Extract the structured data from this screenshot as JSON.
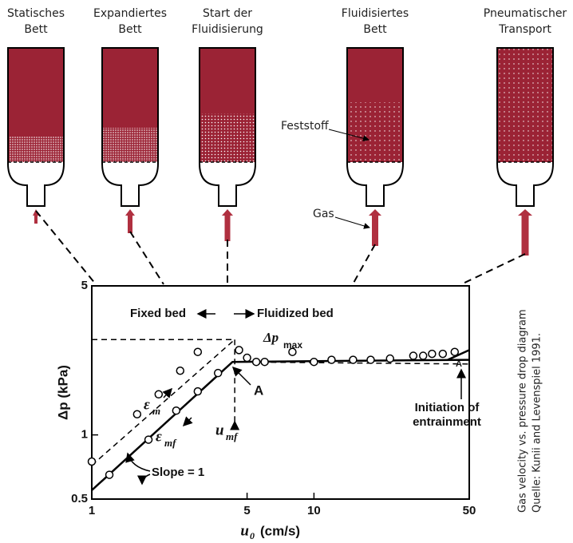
{
  "vessels": [
    {
      "label": [
        "Statisches",
        "Bett"
      ]
    },
    {
      "label": [
        "Expandiertes",
        "Bett"
      ]
    },
    {
      "label": [
        "Start der",
        "Fluidisierung"
      ]
    },
    {
      "label": [
        "Fluidisiertes",
        "Bett"
      ]
    },
    {
      "label": [
        "Pneumatischer",
        "Transport"
      ]
    }
  ],
  "callouts": {
    "solid": "Feststoff",
    "gas": "Gas"
  },
  "side_note": [
    "Gas velocity vs. pressure drop diagram",
    "Quelle: Kunii and Levenspiel 1991."
  ],
  "chart_data": {
    "type": "scatter",
    "x_label": {
      "main": "u",
      "sub": "0",
      "unit": "(cm/s)"
    },
    "y_label": "Δp (kPa)",
    "log_x": true,
    "log_y": true,
    "xlim": [
      1,
      50
    ],
    "ylim": [
      0.5,
      5
    ],
    "xticks": [
      1,
      5,
      10,
      50
    ],
    "yticks": [
      0.5,
      1,
      5
    ],
    "series": [
      {
        "color": "#000",
        "x": [
          1.0,
          1.6,
          2.0,
          2.5,
          3.0
        ],
        "values": [
          0.75,
          1.25,
          1.55,
          2.0,
          2.45
        ]
      },
      {
        "color": "#000",
        "x": [
          1.2,
          1.8,
          2.4,
          3.0,
          3.7
        ],
        "values": [
          0.65,
          0.95,
          1.3,
          1.6,
          1.95
        ]
      },
      {
        "color": "#000",
        "x": [
          4.6,
          5.0,
          5.5,
          6.0,
          8.0,
          10,
          12,
          15,
          18,
          22,
          28,
          31,
          34,
          38,
          43
        ],
        "values": [
          2.5,
          2.3,
          2.2,
          2.2,
          2.45,
          2.2,
          2.25,
          2.25,
          2.25,
          2.28,
          2.35,
          2.35,
          2.4,
          2.4,
          2.45
        ]
      }
    ],
    "guide_lines": [
      {
        "dash": true,
        "x": [
          1,
          4.4
        ],
        "y": [
          0.72,
          2.8
        ]
      },
      {
        "dash": false,
        "x": [
          1,
          4.3,
          50
        ],
        "y": [
          0.55,
          2.2,
          2.25
        ]
      },
      {
        "dash": false,
        "x": [
          40,
          50
        ],
        "y": [
          2.25,
          2.5
        ]
      },
      {
        "dash": true,
        "x": [
          1,
          4.4
        ],
        "y": [
          2.8,
          2.8
        ]
      },
      {
        "dash": true,
        "x": [
          4.4,
          4.4
        ],
        "y": [
          2.8,
          1.15
        ]
      },
      {
        "dash": true,
        "x": [
          4.3,
          50
        ],
        "y": [
          2.2,
          2.15
        ]
      }
    ],
    "annotations": {
      "fixed_bed": "Fixed bed",
      "fluidized_bed": "Fluidized bed",
      "dp_max": {
        "main": "Δp",
        "sub": "max"
      },
      "point_a": "A",
      "point_a2": "A",
      "u_mf": {
        "main": "u",
        "sub": "mf"
      },
      "eps_m": {
        "main": "ε",
        "sub": "m"
      },
      "eps_mf": {
        "main": "ε",
        "sub": "mf"
      },
      "slope": "Slope = 1",
      "entrainment": [
        "Initiation of",
        "entrainment"
      ]
    }
  }
}
